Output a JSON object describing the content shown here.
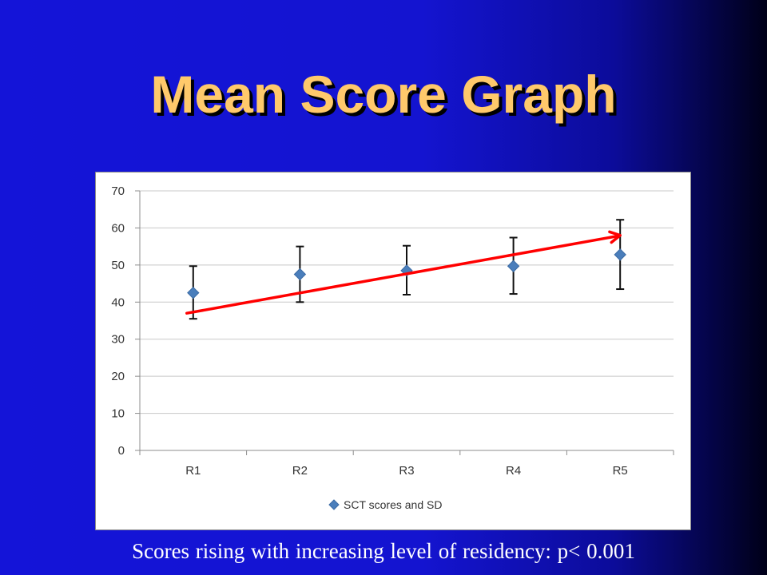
{
  "slide": {
    "title": "Mean Score Graph",
    "caption": "Scores rising with increasing level of residency:  p< 0.001"
  },
  "chart_data": {
    "type": "scatter",
    "title": "",
    "xlabel": "",
    "ylabel": "",
    "categories": [
      "R1",
      "R2",
      "R3",
      "R4",
      "R5"
    ],
    "series": [
      {
        "name": "SCT scores and SD",
        "values": [
          42.5,
          47.5,
          48.5,
          49.7,
          52.8
        ],
        "error_low": [
          35.5,
          40.0,
          42.0,
          42.2,
          43.5
        ],
        "error_high": [
          49.7,
          55.0,
          55.2,
          57.4,
          62.2
        ],
        "color": "#4a7ebb",
        "marker": "diamond"
      }
    ],
    "ylim": [
      0,
      70
    ],
    "yticks": [
      0,
      10,
      20,
      30,
      40,
      50,
      60,
      70
    ],
    "grid": true,
    "legend": "bottom",
    "annotation_arrow": {
      "from": {
        "category": "R1",
        "value": 37
      },
      "to": {
        "category": "R5",
        "value": 58
      },
      "color": "#ff0000"
    }
  }
}
